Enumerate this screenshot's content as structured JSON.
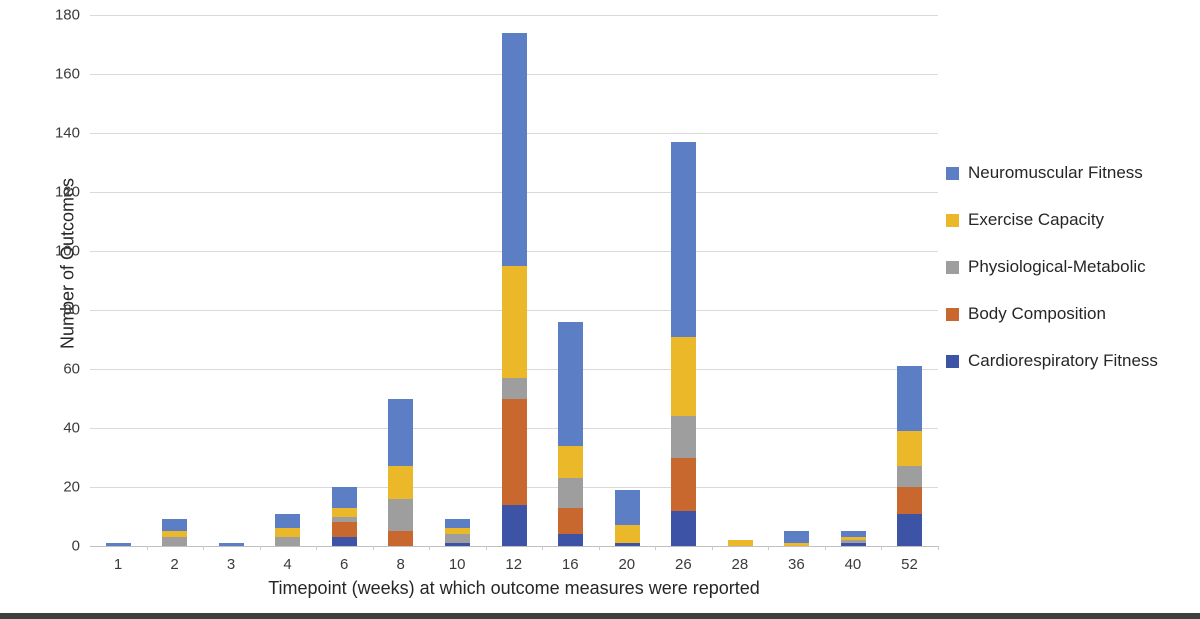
{
  "chart_data": {
    "type": "bar",
    "stacked": true,
    "title": "",
    "xlabel": "Timepoint (weeks) at which outcome measures were reported",
    "ylabel": "Number of Outcomes",
    "ylim": [
      0,
      180
    ],
    "ytick_step": 20,
    "grid": true,
    "legend_position": "right",
    "categories": [
      "1",
      "2",
      "3",
      "4",
      "6",
      "8",
      "10",
      "12",
      "16",
      "20",
      "26",
      "28",
      "36",
      "40",
      "52"
    ],
    "series": [
      {
        "name": "Cardiorespiratory Fitness",
        "color": "#3d53a6",
        "values": [
          0,
          0,
          0,
          0,
          3,
          0,
          1,
          14,
          4,
          1,
          12,
          0,
          0,
          1,
          11
        ]
      },
      {
        "name": "Body Composition",
        "color": "#c8682f",
        "values": [
          0,
          0,
          0,
          0,
          5,
          5,
          0,
          36,
          9,
          0,
          18,
          0,
          0,
          0,
          9
        ]
      },
      {
        "name": "Physiological-Metabolic",
        "color": "#9e9e9e",
        "values": [
          0,
          3,
          0,
          3,
          2,
          11,
          3,
          7,
          10,
          0,
          14,
          0,
          0,
          1,
          7
        ]
      },
      {
        "name": "Exercise Capacity",
        "color": "#eab829",
        "values": [
          0,
          2,
          0,
          3,
          3,
          11,
          2,
          38,
          11,
          6,
          27,
          2,
          1,
          1,
          12
        ]
      },
      {
        "name": "Neuromuscular Fitness",
        "color": "#5b7ec4",
        "values": [
          1,
          4,
          1,
          5,
          7,
          23,
          3,
          79,
          42,
          12,
          66,
          0,
          4,
          2,
          22
        ]
      }
    ],
    "totals": [
      1,
      9,
      1,
      11,
      20,
      50,
      9,
      174,
      76,
      19,
      137,
      2,
      5,
      5,
      61
    ],
    "legend_order": [
      "Neuromuscular Fitness",
      "Exercise Capacity",
      "Physiological-Metabolic",
      "Body Composition",
      "Cardiorespiratory Fitness"
    ]
  },
  "styles": {
    "gridline_color": "#d9d9d9",
    "baseline_color": "#bfbfbf",
    "tick_text_color": "#3b3b3b",
    "label_text_color": "#262626",
    "background": "#ffffff",
    "bottom_edge_color": "#3f3f3f"
  }
}
